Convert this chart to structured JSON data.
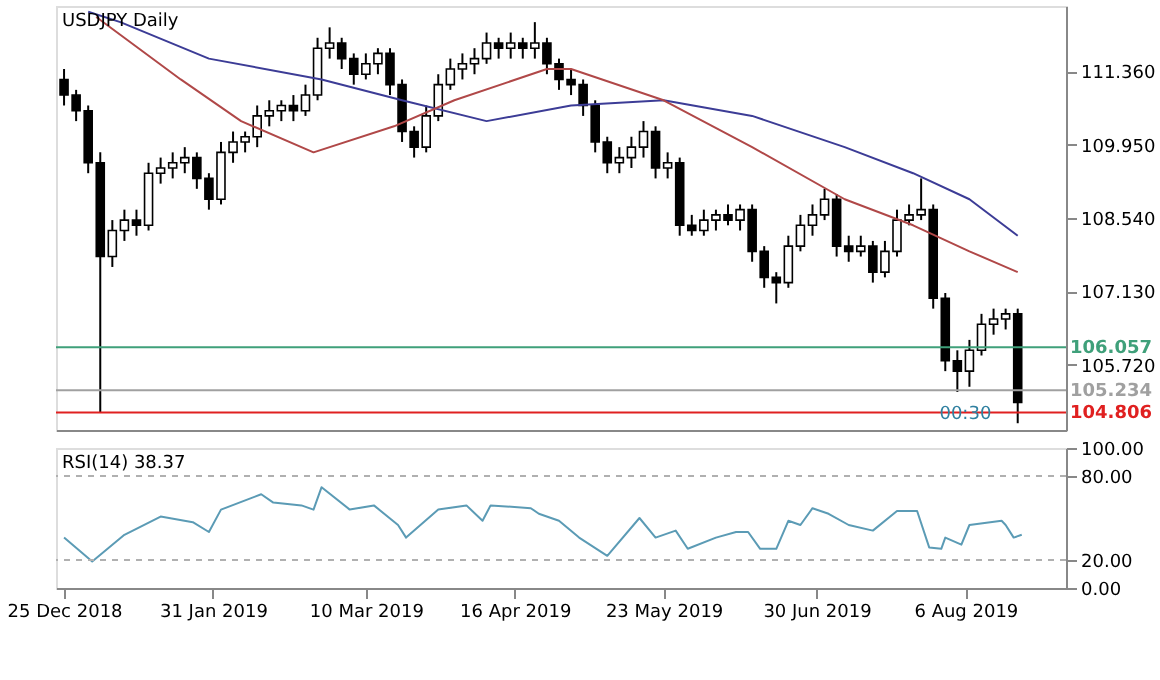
{
  "chart_data": [
    {
      "type": "candlestick",
      "title": "USDJPY Daily",
      "color": "#000000",
      "tick_labels": "y",
      "grid": false,
      "x": [
        "2018-12-25",
        "2018-12-28",
        "2018-12-31",
        "2019-01-03",
        "2019-01-06",
        "2019-01-09",
        "2019-01-12",
        "2019-01-15",
        "2019-01-18",
        "2019-01-21",
        "2019-01-24",
        "2019-01-27",
        "2019-01-30",
        "2019-02-02",
        "2019-02-05",
        "2019-02-08",
        "2019-02-11",
        "2019-02-14",
        "2019-02-17",
        "2019-02-20",
        "2019-02-23",
        "2019-02-26",
        "2019-03-01",
        "2019-03-04",
        "2019-03-07",
        "2019-03-10",
        "2019-03-13",
        "2019-03-16",
        "2019-03-19",
        "2019-03-22",
        "2019-03-25",
        "2019-03-28",
        "2019-03-31",
        "2019-04-03",
        "2019-04-06",
        "2019-04-09",
        "2019-04-12",
        "2019-04-15",
        "2019-04-18",
        "2019-04-21",
        "2019-04-24",
        "2019-04-27",
        "2019-04-30",
        "2019-05-03",
        "2019-05-06",
        "2019-05-09",
        "2019-05-12",
        "2019-05-15",
        "2019-05-18",
        "2019-05-21",
        "2019-05-24",
        "2019-05-27",
        "2019-05-30",
        "2019-06-02",
        "2019-06-05",
        "2019-06-08",
        "2019-06-11",
        "2019-06-14",
        "2019-06-17",
        "2019-06-20",
        "2019-06-23",
        "2019-06-26",
        "2019-06-29",
        "2019-07-02",
        "2019-07-05",
        "2019-07-08",
        "2019-07-11",
        "2019-07-14",
        "2019-07-17",
        "2019-07-20",
        "2019-07-23",
        "2019-07-26",
        "2019-07-29",
        "2019-08-01",
        "2019-08-04",
        "2019-08-07",
        "2019-08-10",
        "2019-08-13",
        "2019-08-16",
        "2019-08-19"
      ],
      "ohlc": [
        [
          111.2,
          111.4,
          110.7,
          110.9
        ],
        [
          110.9,
          111.0,
          110.4,
          110.6
        ],
        [
          110.6,
          110.7,
          109.4,
          109.6
        ],
        [
          109.6,
          109.8,
          104.8,
          107.8
        ],
        [
          107.8,
          108.5,
          107.6,
          108.3
        ],
        [
          108.3,
          108.7,
          108.1,
          108.5
        ],
        [
          108.5,
          108.7,
          108.2,
          108.4
        ],
        [
          108.4,
          109.6,
          108.3,
          109.4
        ],
        [
          109.4,
          109.7,
          109.2,
          109.5
        ],
        [
          109.5,
          109.8,
          109.3,
          109.6
        ],
        [
          109.6,
          109.9,
          109.4,
          109.7
        ],
        [
          109.7,
          109.8,
          109.1,
          109.3
        ],
        [
          109.3,
          109.4,
          108.7,
          108.9
        ],
        [
          108.9,
          110.0,
          108.8,
          109.8
        ],
        [
          109.8,
          110.2,
          109.6,
          110.0
        ],
        [
          110.0,
          110.2,
          109.8,
          110.1
        ],
        [
          110.1,
          110.7,
          109.9,
          110.5
        ],
        [
          110.5,
          110.8,
          110.3,
          110.6
        ],
        [
          110.6,
          110.8,
          110.4,
          110.7
        ],
        [
          110.7,
          110.9,
          110.4,
          110.6
        ],
        [
          110.6,
          111.1,
          110.5,
          110.9
        ],
        [
          110.9,
          112.0,
          110.8,
          111.8
        ],
        [
          111.8,
          112.2,
          111.6,
          111.9
        ],
        [
          111.9,
          112.0,
          111.4,
          111.6
        ],
        [
          111.6,
          111.7,
          111.1,
          111.3
        ],
        [
          111.3,
          111.7,
          111.2,
          111.5
        ],
        [
          111.5,
          111.8,
          111.3,
          111.7
        ],
        [
          111.7,
          111.8,
          110.9,
          111.1
        ],
        [
          111.1,
          111.2,
          110.0,
          110.2
        ],
        [
          110.2,
          110.3,
          109.7,
          109.9
        ],
        [
          109.9,
          110.7,
          109.8,
          110.5
        ],
        [
          110.5,
          111.3,
          110.4,
          111.1
        ],
        [
          111.1,
          111.6,
          111.0,
          111.4
        ],
        [
          111.4,
          111.7,
          111.2,
          111.5
        ],
        [
          111.5,
          111.8,
          111.3,
          111.6
        ],
        [
          111.6,
          112.1,
          111.5,
          111.9
        ],
        [
          111.9,
          112.0,
          111.6,
          111.8
        ],
        [
          111.8,
          112.1,
          111.6,
          111.9
        ],
        [
          111.9,
          112.0,
          111.6,
          111.8
        ],
        [
          111.8,
          112.3,
          111.6,
          111.9
        ],
        [
          111.9,
          112.0,
          111.3,
          111.5
        ],
        [
          111.5,
          111.6,
          111.0,
          111.2
        ],
        [
          111.2,
          111.4,
          110.9,
          111.1
        ],
        [
          111.1,
          111.2,
          110.5,
          110.7
        ],
        [
          110.7,
          110.8,
          109.8,
          110.0
        ],
        [
          110.0,
          110.1,
          109.4,
          109.6
        ],
        [
          109.6,
          109.9,
          109.4,
          109.7
        ],
        [
          109.7,
          110.1,
          109.5,
          109.9
        ],
        [
          109.9,
          110.4,
          109.7,
          110.2
        ],
        [
          110.2,
          110.3,
          109.3,
          109.5
        ],
        [
          109.5,
          109.8,
          109.3,
          109.6
        ],
        [
          109.6,
          109.7,
          108.2,
          108.4
        ],
        [
          108.4,
          108.6,
          108.2,
          108.3
        ],
        [
          108.3,
          108.7,
          108.2,
          108.5
        ],
        [
          108.5,
          108.7,
          108.3,
          108.6
        ],
        [
          108.6,
          108.8,
          108.4,
          108.5
        ],
        [
          108.5,
          108.8,
          108.3,
          108.7
        ],
        [
          108.7,
          108.8,
          107.7,
          107.9
        ],
        [
          107.9,
          108.0,
          107.2,
          107.4
        ],
        [
          107.4,
          107.5,
          106.9,
          107.3
        ],
        [
          107.3,
          108.2,
          107.2,
          108.0
        ],
        [
          108.0,
          108.6,
          107.9,
          108.4
        ],
        [
          108.4,
          108.8,
          108.2,
          108.6
        ],
        [
          108.6,
          109.1,
          108.5,
          108.9
        ],
        [
          108.9,
          109.0,
          107.8,
          108.0
        ],
        [
          108.0,
          108.2,
          107.7,
          107.9
        ],
        [
          107.9,
          108.2,
          107.8,
          108.0
        ],
        [
          108.0,
          108.1,
          107.3,
          107.5
        ],
        [
          107.5,
          108.1,
          107.4,
          107.9
        ],
        [
          107.9,
          108.7,
          107.8,
          108.5
        ],
        [
          108.5,
          108.8,
          108.4,
          108.6
        ],
        [
          108.6,
          109.3,
          108.5,
          108.7
        ],
        [
          108.7,
          108.8,
          106.8,
          107.0
        ],
        [
          107.0,
          107.1,
          105.6,
          105.8
        ],
        [
          105.8,
          106.0,
          105.2,
          105.6
        ],
        [
          105.6,
          106.2,
          105.3,
          106.0
        ],
        [
          106.0,
          106.7,
          105.9,
          106.5
        ],
        [
          106.5,
          106.8,
          106.3,
          106.6
        ],
        [
          106.6,
          106.8,
          106.4,
          106.7
        ],
        [
          106.7,
          106.8,
          104.6,
          105.0
        ]
      ],
      "series": [
        {
          "type": "line",
          "color": "#3c3c96",
          "x": [
            "2018-12-31",
            "2019-01-08",
            "2019-01-30",
            "2019-02-27",
            "2019-03-19",
            "2019-04-09",
            "2019-04-30",
            "2019-05-23",
            "2019-06-14",
            "2019-07-07",
            "2019-07-24",
            "2019-08-07",
            "2019-08-19"
          ],
          "values": [
            112.5,
            112.3,
            111.6,
            111.2,
            110.8,
            110.4,
            110.7,
            110.8,
            110.5,
            109.9,
            109.4,
            108.9,
            108.2
          ]
        },
        {
          "type": "line",
          "color": "#b04848",
          "x": [
            "2019-01-02",
            "2019-01-23",
            "2019-02-07",
            "2019-02-25",
            "2019-03-17",
            "2019-04-01",
            "2019-04-24",
            "2019-04-30",
            "2019-05-23",
            "2019-06-14",
            "2019-07-07",
            "2019-07-24",
            "2019-08-07",
            "2019-08-19"
          ],
          "values": [
            112.4,
            111.2,
            110.4,
            109.8,
            110.3,
            110.8,
            111.4,
            111.4,
            110.8,
            109.9,
            108.9,
            108.4,
            107.9,
            107.5
          ]
        }
      ],
      "ref_lines": [
        {
          "axis": "y",
          "value": 106.057,
          "label": "106.057",
          "color": "#3fa07a"
        },
        {
          "axis": "y",
          "value": 105.234,
          "label": "105.234",
          "color": "#a0a0a0"
        },
        {
          "axis": "y",
          "value": 104.806,
          "label": "104.806",
          "color": "#e02020"
        }
      ],
      "annotations": [
        {
          "text": "00:30",
          "x": "2019-08-06",
          "y": 104.8
        }
      ],
      "xlim": [
        "2018-12-23",
        "2019-08-31"
      ],
      "ylim": [
        104.47,
        112.61
      ],
      "yticks": [
        {
          "value": 111.36,
          "label": "111.360"
        },
        {
          "value": 109.95,
          "label": "109.950"
        },
        {
          "value": 108.54,
          "label": "108.540"
        },
        {
          "value": 107.13,
          "label": "107.130"
        },
        {
          "value": 105.72,
          "label": "105.720"
        }
      ]
    },
    {
      "type": "line",
      "title": "RSI(14) 38.37",
      "grid": false,
      "series": [
        {
          "color": "#5b9bb5",
          "x": [
            "2018-12-25",
            "2019-01-01",
            "2019-01-09",
            "2019-01-18",
            "2019-01-26",
            "2019-01-30",
            "2019-02-02",
            "2019-02-12",
            "2019-02-15",
            "2019-02-22",
            "2019-02-25",
            "2019-02-27",
            "2019-03-06",
            "2019-03-12",
            "2019-03-18",
            "2019-03-20",
            "2019-03-28",
            "2019-04-04",
            "2019-04-08",
            "2019-04-10",
            "2019-04-20",
            "2019-04-22",
            "2019-04-27",
            "2019-05-02",
            "2019-05-09",
            "2019-05-17",
            "2019-05-21",
            "2019-05-26",
            "2019-05-29",
            "2019-06-05",
            "2019-06-10",
            "2019-06-13",
            "2019-06-16",
            "2019-06-20",
            "2019-06-23",
            "2019-06-26",
            "2019-06-29",
            "2019-07-03",
            "2019-07-08",
            "2019-07-14",
            "2019-07-20",
            "2019-07-25",
            "2019-07-28",
            "2019-07-31",
            "2019-08-01",
            "2019-08-05",
            "2019-08-07",
            "2019-08-15",
            "2019-08-16",
            "2019-08-18",
            "2019-08-20"
          ],
          "values": [
            36,
            19,
            38,
            51,
            47,
            40,
            56,
            67,
            61,
            59,
            56,
            72,
            56,
            59,
            45,
            36,
            56,
            59,
            48,
            59,
            57,
            53,
            48,
            36,
            23,
            50,
            36,
            41,
            28,
            36,
            40,
            40,
            28,
            28,
            48,
            45,
            57,
            53,
            45,
            41,
            55,
            55,
            29,
            28,
            36,
            31,
            45,
            48,
            45,
            36,
            38
          ]
        }
      ],
      "ref_lines": [
        {
          "axis": "y",
          "value": 20,
          "color": "#b0b0b0",
          "line_style": "dashed"
        },
        {
          "axis": "y",
          "value": 80,
          "color": "#b0b0b0",
          "line_style": "dashed"
        }
      ],
      "xlim": [
        "2018-12-23",
        "2019-08-31"
      ],
      "ylim": [
        0,
        100
      ],
      "xticks": [
        {
          "value": "2018-12-25",
          "label": "25 Dec 2018"
        },
        {
          "value": "2019-01-31",
          "label": "31 Jan 2019"
        },
        {
          "value": "2019-03-10",
          "label": "10 Mar 2019"
        },
        {
          "value": "2019-04-16",
          "label": "16 Apr 2019"
        },
        {
          "value": "2019-05-23",
          "label": "23 May 2019"
        },
        {
          "value": "2019-06-30",
          "label": "30 Jun 2019"
        },
        {
          "value": "2019-08-06",
          "label": "6 Aug 2019"
        }
      ],
      "yticks": [
        {
          "value": 0,
          "label": "0.00"
        },
        {
          "value": 20,
          "label": "20.00"
        },
        {
          "value": 80,
          "label": "80.00"
        },
        {
          "value": 100,
          "label": "100.00"
        }
      ]
    }
  ]
}
